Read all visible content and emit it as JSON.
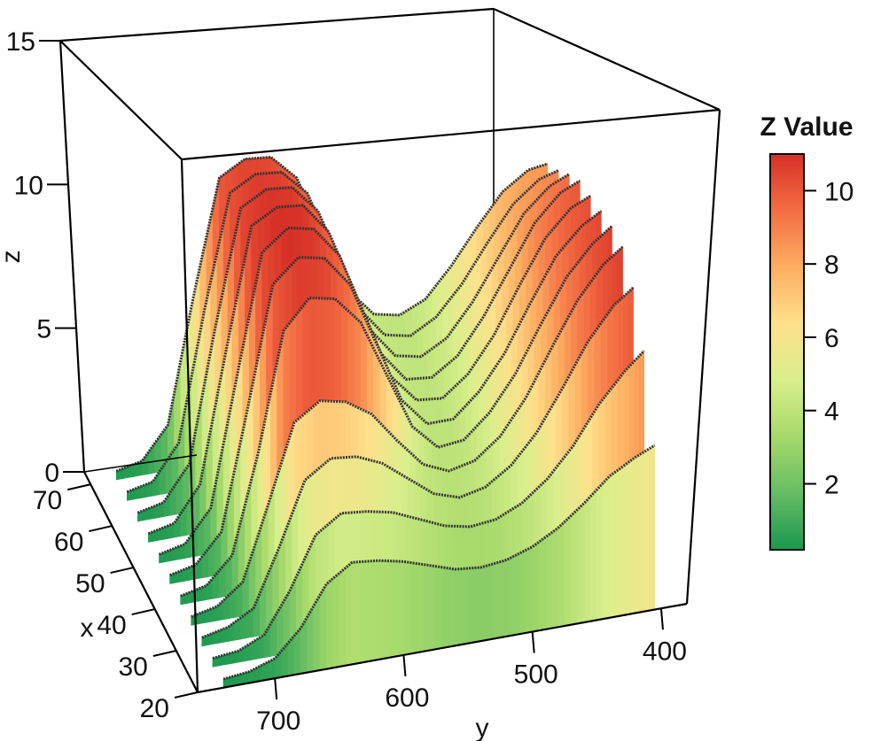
{
  "chart_data": {
    "type": "3d-ridgeline",
    "title": "",
    "xlabel": "x",
    "ylabel": "y",
    "zlabel": "z",
    "x_ticks": [
      20,
      30,
      40,
      50,
      60,
      70
    ],
    "y_ticks": [
      700,
      600,
      500,
      400
    ],
    "z_ticks": [
      0,
      5,
      10,
      15
    ],
    "xlim": [
      20,
      73
    ],
    "ylim": [
      380,
      760
    ],
    "zlim": [
      0,
      15
    ],
    "grid": false,
    "series_y": [
      740,
      720,
      700,
      680,
      660,
      640,
      620,
      600,
      580,
      560,
      540,
      520,
      500,
      480,
      460,
      440,
      420,
      405
    ],
    "series": [
      {
        "x": 20,
        "z": [
          0.3,
          0.4,
          0.7,
          1.6,
          3.0,
          3.6,
          3.5,
          3.3,
          3.0,
          2.7,
          2.6,
          2.7,
          3.0,
          3.5,
          4.2,
          5.0,
          5.5,
          5.8
        ]
      },
      {
        "x": 25,
        "z": [
          0.3,
          0.4,
          0.8,
          2.2,
          4.0,
          4.6,
          4.5,
          4.3,
          3.9,
          3.5,
          3.3,
          3.4,
          3.8,
          4.5,
          5.5,
          6.8,
          7.8,
          8.4
        ]
      },
      {
        "x": 30,
        "z": [
          0.3,
          0.5,
          1.0,
          3.0,
          5.2,
          5.8,
          5.7,
          5.3,
          4.6,
          3.9,
          3.6,
          3.8,
          4.4,
          5.4,
          6.8,
          8.3,
          9.4,
          9.9
        ]
      },
      {
        "x": 35,
        "z": [
          0.3,
          0.5,
          1.2,
          3.8,
          6.5,
          7.1,
          6.9,
          6.3,
          5.2,
          4.2,
          3.8,
          4.0,
          4.7,
          5.9,
          7.5,
          9.0,
          10.1,
          10.6
        ]
      },
      {
        "x": 40,
        "z": [
          0.3,
          0.5,
          1.4,
          4.8,
          9.0,
          10.0,
          9.8,
          8.8,
          6.8,
          4.8,
          3.9,
          4.0,
          4.8,
          6.0,
          7.6,
          9.1,
          10.1,
          10.6
        ]
      },
      {
        "x": 45,
        "z": [
          0.3,
          0.5,
          1.5,
          5.6,
          9.9,
          10.7,
          10.5,
          9.4,
          7.2,
          5.0,
          4.0,
          4.0,
          4.8,
          6.0,
          7.6,
          9.1,
          10.0,
          10.4
        ]
      },
      {
        "x": 50,
        "z": [
          0.3,
          0.5,
          1.6,
          6.0,
          10.3,
          11.0,
          10.8,
          9.7,
          7.4,
          5.1,
          4.1,
          4.0,
          4.7,
          5.9,
          7.5,
          9.0,
          9.9,
          10.2
        ]
      },
      {
        "x": 55,
        "z": [
          0.3,
          0.5,
          1.7,
          6.2,
          10.5,
          11.0,
          10.9,
          9.8,
          7.5,
          5.2,
          4.1,
          4.0,
          4.6,
          5.8,
          7.3,
          8.8,
          9.7,
          10.0
        ]
      },
      {
        "x": 60,
        "z": [
          0.3,
          0.5,
          1.7,
          6.3,
          10.4,
          10.9,
          10.8,
          9.8,
          7.6,
          5.3,
          4.2,
          4.0,
          4.5,
          5.6,
          7.0,
          8.4,
          9.2,
          9.5
        ]
      },
      {
        "x": 65,
        "z": [
          0.3,
          0.5,
          1.7,
          6.2,
          10.2,
          10.7,
          10.6,
          9.7,
          7.5,
          5.3,
          4.2,
          4.0,
          4.5,
          5.5,
          6.8,
          8.0,
          8.7,
          8.9
        ]
      },
      {
        "x": 70,
        "z": [
          0.3,
          0.5,
          1.6,
          6.0,
          10.0,
          10.5,
          10.4,
          9.5,
          7.4,
          5.2,
          4.2,
          4.0,
          4.4,
          5.4,
          6.6,
          7.7,
          8.3,
          8.4
        ]
      }
    ],
    "colorbar": {
      "title": "Z Value",
      "ticks": [
        2,
        4,
        6,
        8,
        10
      ],
      "range": [
        0.2,
        11.0
      ],
      "colors": [
        "#1a9850",
        "#66bd63",
        "#a6d96a",
        "#d9ef8b",
        "#fee08b",
        "#fdae61",
        "#f46d43",
        "#d73027"
      ]
    }
  }
}
